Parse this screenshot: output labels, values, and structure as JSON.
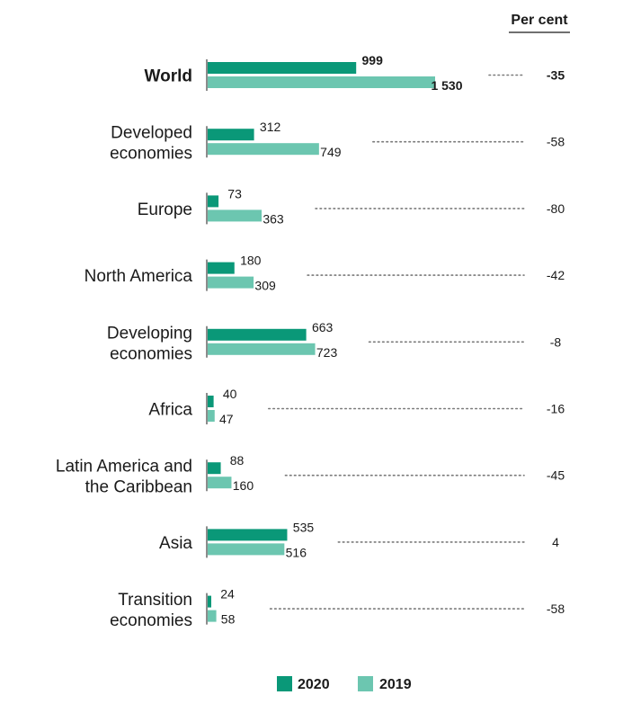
{
  "chart_data": {
    "type": "bar",
    "orientation": "horizontal",
    "title": "",
    "column_header": "Per cent",
    "categories": [
      {
        "label_lines": [
          "World"
        ],
        "bold": true
      },
      {
        "label_lines": [
          "Developed",
          "economies"
        ],
        "bold": false
      },
      {
        "label_lines": [
          "Europe"
        ],
        "bold": false
      },
      {
        "label_lines": [
          "North America"
        ],
        "bold": false
      },
      {
        "label_lines": [
          "Developing",
          "economies"
        ],
        "bold": false
      },
      {
        "label_lines": [
          "Africa"
        ],
        "bold": false
      },
      {
        "label_lines": [
          "Latin America and",
          "the Caribbean"
        ],
        "bold": false
      },
      {
        "label_lines": [
          "Asia"
        ],
        "bold": false
      },
      {
        "label_lines": [
          "Transition",
          "economies"
        ],
        "bold": false
      }
    ],
    "series": [
      {
        "name": "2020",
        "color": "#0a9878",
        "values": [
          999,
          312,
          73,
          180,
          663,
          40,
          88,
          535,
          24
        ],
        "labels": [
          "999",
          "312",
          "73",
          "180",
          "663",
          "40",
          "88",
          "535",
          "24"
        ]
      },
      {
        "name": "2019",
        "color": "#6cc6b0",
        "values": [
          1530,
          749,
          363,
          309,
          723,
          47,
          160,
          516,
          58
        ],
        "labels": [
          "1 530",
          "749",
          "363",
          "309",
          "723",
          "47",
          "160",
          "516",
          "58"
        ]
      }
    ],
    "percent_change": [
      "-35",
      "-58",
      "-80",
      "-42",
      "-8",
      "-16",
      "-45",
      "4",
      "-58"
    ],
    "legend": {
      "position": "bottom",
      "entries": [
        "2020",
        "2019"
      ]
    },
    "xlim": [
      0,
      1530
    ]
  }
}
